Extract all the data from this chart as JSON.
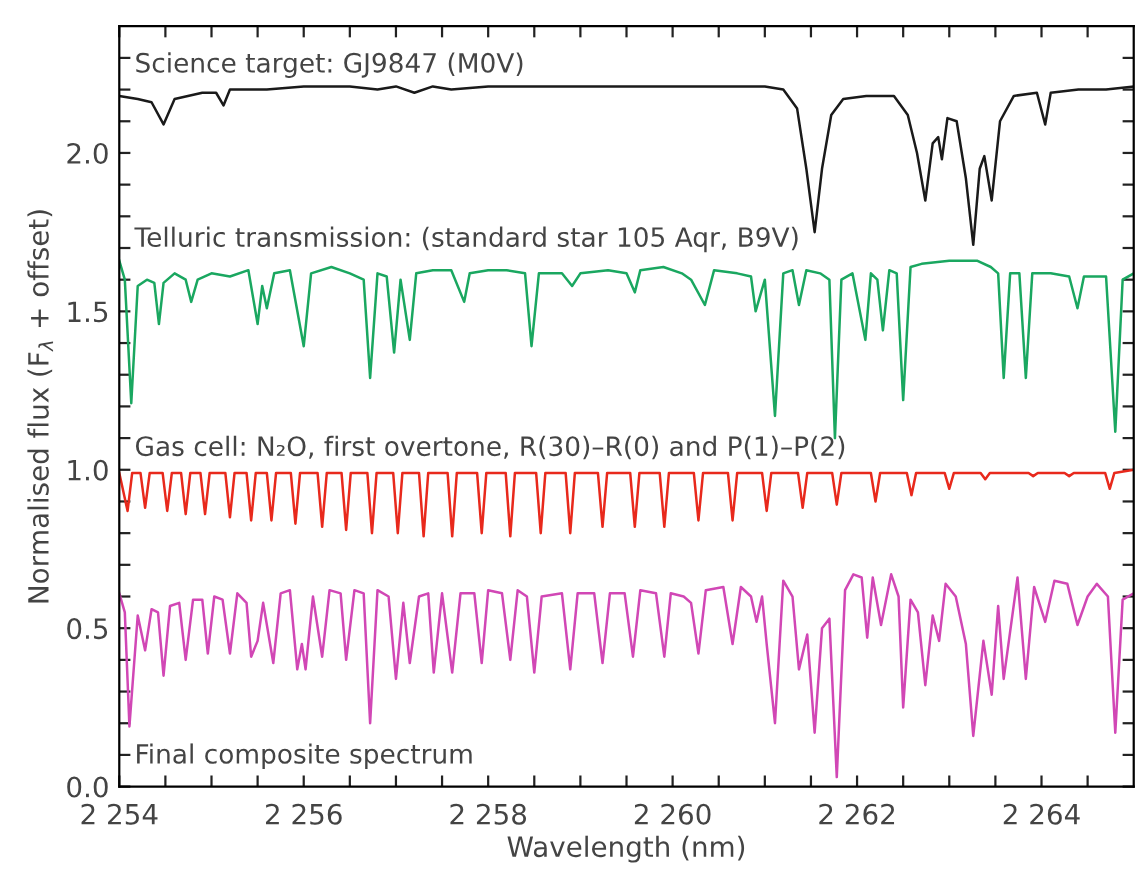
{
  "chart_data": {
    "type": "line",
    "xlabel": "Wavelength (nm)",
    "ylabel": "Normalised flux (F$_{λ}$ + offset)",
    "xlim": [
      2254,
      2265
    ],
    "ylim": [
      0,
      2.4
    ],
    "xticks": [
      {
        "value": 2254,
        "label": "2 254"
      },
      {
        "value": 2254.5,
        "label": null
      },
      {
        "value": 2255,
        "label": null
      },
      {
        "value": 2255.5,
        "label": null
      },
      {
        "value": 2256,
        "label": "2 256"
      },
      {
        "value": 2256.5,
        "label": null
      },
      {
        "value": 2257,
        "label": null
      },
      {
        "value": 2257.5,
        "label": null
      },
      {
        "value": 2258,
        "label": "2 258"
      },
      {
        "value": 2258.5,
        "label": null
      },
      {
        "value": 2259,
        "label": null
      },
      {
        "value": 2259.5,
        "label": null
      },
      {
        "value": 2260,
        "label": "2 260"
      },
      {
        "value": 2260.5,
        "label": null
      },
      {
        "value": 2261,
        "label": null
      },
      {
        "value": 2261.5,
        "label": null
      },
      {
        "value": 2262,
        "label": "2 262"
      },
      {
        "value": 2262.5,
        "label": null
      },
      {
        "value": 2263,
        "label": null
      },
      {
        "value": 2263.5,
        "label": null
      },
      {
        "value": 2264,
        "label": "2 264"
      },
      {
        "value": 2264.5,
        "label": null
      }
    ],
    "yticks": [
      {
        "value": 0,
        "label": "0.0"
      },
      {
        "value": 0.1,
        "label": null
      },
      {
        "value": 0.2,
        "label": null
      },
      {
        "value": 0.3,
        "label": null
      },
      {
        "value": 0.4,
        "label": null
      },
      {
        "value": 0.5,
        "label": "0.5"
      },
      {
        "value": 0.6,
        "label": null
      },
      {
        "value": 0.7,
        "label": null
      },
      {
        "value": 0.8,
        "label": null
      },
      {
        "value": 0.9,
        "label": null
      },
      {
        "value": 1.0,
        "label": "1.0"
      },
      {
        "value": 1.1,
        "label": null
      },
      {
        "value": 1.2,
        "label": null
      },
      {
        "value": 1.3,
        "label": null
      },
      {
        "value": 1.4,
        "label": null
      },
      {
        "value": 1.5,
        "label": "1.5"
      },
      {
        "value": 1.6,
        "label": null
      },
      {
        "value": 1.7,
        "label": null
      },
      {
        "value": 1.8,
        "label": null
      },
      {
        "value": 1.9,
        "label": null
      },
      {
        "value": 2.0,
        "label": "2.0"
      },
      {
        "value": 2.1,
        "label": null
      },
      {
        "value": 2.2,
        "label": null
      },
      {
        "value": 2.3,
        "label": null
      }
    ],
    "annotations": [
      "Science target: GJ9847 (M0V)",
      "Telluric transmission: (standard star 105 Aqr, B9V)",
      "Gas cell: N₂O, first overtone, R(30)–R(0) and P(1)–P(2)",
      "Final composite spectrum"
    ],
    "grid": false,
    "marker": "none",
    "line_style": "solid",
    "series": [
      {
        "color": "#1a1a1a",
        "x": [
          2254.0,
          2254.2,
          2254.35,
          2254.48,
          2254.6,
          2254.9,
          2255.05,
          2255.13,
          2255.2,
          2255.6,
          2256.0,
          2256.5,
          2256.8,
          2257.0,
          2257.2,
          2257.4,
          2257.6,
          2258.0,
          2258.5,
          2259.0,
          2259.5,
          2260.0,
          2260.5,
          2261.0,
          2261.2,
          2261.35,
          2261.45,
          2261.54,
          2261.62,
          2261.72,
          2261.85,
          2262.1,
          2262.4,
          2262.55,
          2262.65,
          2262.74,
          2262.82,
          2262.88,
          2262.92,
          2262.98,
          2263.08,
          2263.18,
          2263.26,
          2263.33,
          2263.38,
          2263.46,
          2263.55,
          2263.7,
          2263.95,
          2264.04,
          2264.1,
          2264.4,
          2264.7,
          2265.0
        ],
        "values": [
          2.18,
          2.17,
          2.16,
          2.09,
          2.17,
          2.19,
          2.19,
          2.15,
          2.2,
          2.2,
          2.21,
          2.21,
          2.2,
          2.21,
          2.19,
          2.21,
          2.2,
          2.21,
          2.21,
          2.21,
          2.21,
          2.21,
          2.21,
          2.21,
          2.2,
          2.14,
          1.95,
          1.75,
          1.95,
          2.12,
          2.17,
          2.18,
          2.18,
          2.12,
          2.0,
          1.85,
          2.03,
          2.05,
          1.98,
          2.11,
          2.1,
          1.92,
          1.71,
          1.95,
          1.99,
          1.85,
          2.1,
          2.18,
          2.19,
          2.09,
          2.19,
          2.2,
          2.2,
          2.21
        ]
      },
      {
        "color": "#1aa760",
        "x": [
          2254.0,
          2254.06,
          2254.13,
          2254.2,
          2254.3,
          2254.38,
          2254.43,
          2254.48,
          2254.6,
          2254.72,
          2254.78,
          2254.85,
          2255.0,
          2255.2,
          2255.4,
          2255.5,
          2255.55,
          2255.6,
          2255.68,
          2255.85,
          2256.0,
          2256.08,
          2256.3,
          2256.5,
          2256.65,
          2256.72,
          2256.8,
          2256.9,
          2256.98,
          2257.05,
          2257.15,
          2257.22,
          2257.4,
          2257.6,
          2257.74,
          2257.8,
          2258.0,
          2258.2,
          2258.4,
          2258.47,
          2258.55,
          2258.8,
          2258.91,
          2259.0,
          2259.3,
          2259.5,
          2259.59,
          2259.65,
          2259.9,
          2260.1,
          2260.2,
          2260.35,
          2260.45,
          2260.7,
          2260.85,
          2260.9,
          2261.0,
          2261.11,
          2261.2,
          2261.3,
          2261.37,
          2261.45,
          2261.6,
          2261.7,
          2261.76,
          2261.83,
          2261.95,
          2262.09,
          2262.15,
          2262.22,
          2262.28,
          2262.35,
          2262.43,
          2262.5,
          2262.58,
          2262.7,
          2263.0,
          2263.3,
          2263.45,
          2263.53,
          2263.59,
          2263.66,
          2263.76,
          2263.83,
          2263.9,
          2264.1,
          2264.3,
          2264.39,
          2264.46,
          2264.7,
          2264.8,
          2264.88,
          2265.0
        ],
        "values": [
          1.66,
          1.6,
          1.21,
          1.58,
          1.6,
          1.59,
          1.46,
          1.59,
          1.62,
          1.6,
          1.53,
          1.6,
          1.62,
          1.61,
          1.63,
          1.46,
          1.58,
          1.51,
          1.62,
          1.63,
          1.39,
          1.62,
          1.64,
          1.62,
          1.6,
          1.29,
          1.62,
          1.61,
          1.37,
          1.6,
          1.41,
          1.62,
          1.63,
          1.63,
          1.53,
          1.62,
          1.63,
          1.63,
          1.62,
          1.39,
          1.62,
          1.62,
          1.58,
          1.62,
          1.63,
          1.62,
          1.56,
          1.63,
          1.64,
          1.62,
          1.6,
          1.52,
          1.63,
          1.62,
          1.61,
          1.5,
          1.6,
          1.17,
          1.62,
          1.63,
          1.52,
          1.63,
          1.62,
          1.6,
          1.1,
          1.6,
          1.62,
          1.41,
          1.62,
          1.6,
          1.44,
          1.63,
          1.62,
          1.22,
          1.64,
          1.65,
          1.66,
          1.66,
          1.64,
          1.62,
          1.29,
          1.62,
          1.62,
          1.29,
          1.62,
          1.62,
          1.61,
          1.51,
          1.61,
          1.61,
          1.12,
          1.6,
          1.62
        ]
      },
      {
        "color": "#e8291c",
        "x": [
          2254.0,
          2254.09,
          2254.14,
          2254.23,
          2254.28,
          2254.33,
          2254.47,
          2254.52,
          2254.57,
          2254.67,
          2254.72,
          2254.77,
          2254.88,
          2254.93,
          2254.98,
          2255.15,
          2255.2,
          2255.25,
          2255.38,
          2255.43,
          2255.48,
          2255.6,
          2255.65,
          2255.7,
          2255.86,
          2255.91,
          2255.96,
          2256.15,
          2256.2,
          2256.25,
          2256.41,
          2256.46,
          2256.51,
          2256.69,
          2256.74,
          2256.79,
          2256.97,
          2257.02,
          2257.07,
          2257.25,
          2257.3,
          2257.35,
          2257.56,
          2257.61,
          2257.66,
          2257.88,
          2257.93,
          2257.98,
          2258.19,
          2258.24,
          2258.29,
          2258.52,
          2258.57,
          2258.62,
          2258.84,
          2258.89,
          2258.94,
          2259.19,
          2259.24,
          2259.29,
          2259.54,
          2259.59,
          2259.64,
          2259.86,
          2259.91,
          2259.96,
          2260.23,
          2260.28,
          2260.33,
          2260.6,
          2260.65,
          2260.7,
          2260.97,
          2261.02,
          2261.07,
          2261.36,
          2261.41,
          2261.46,
          2261.73,
          2261.78,
          2261.83,
          2262.15,
          2262.2,
          2262.25,
          2262.54,
          2262.59,
          2262.64,
          2262.95,
          2263.0,
          2263.05,
          2263.34,
          2263.39,
          2263.44,
          2263.86,
          2263.91,
          2263.96,
          2264.25,
          2264.3,
          2264.35,
          2264.69,
          2264.74,
          2264.79,
          2265.0
        ],
        "values": [
          0.99,
          0.87,
          0.99,
          0.99,
          0.88,
          0.99,
          0.99,
          0.87,
          0.99,
          0.99,
          0.86,
          0.99,
          0.99,
          0.86,
          0.99,
          0.99,
          0.85,
          0.99,
          0.99,
          0.84,
          0.99,
          0.99,
          0.84,
          0.99,
          0.99,
          0.83,
          0.99,
          0.99,
          0.82,
          0.99,
          0.99,
          0.81,
          0.99,
          0.99,
          0.8,
          0.99,
          0.99,
          0.8,
          0.99,
          0.99,
          0.79,
          0.99,
          0.99,
          0.79,
          0.99,
          0.99,
          0.8,
          0.99,
          0.99,
          0.79,
          0.99,
          0.99,
          0.8,
          0.99,
          0.99,
          0.8,
          0.99,
          0.99,
          0.82,
          0.99,
          0.99,
          0.82,
          0.99,
          0.99,
          0.82,
          0.99,
          0.99,
          0.84,
          0.99,
          0.99,
          0.84,
          0.99,
          0.99,
          0.87,
          0.99,
          0.99,
          0.88,
          0.99,
          0.99,
          0.89,
          0.99,
          0.99,
          0.9,
          0.99,
          0.99,
          0.92,
          0.99,
          0.99,
          0.94,
          0.99,
          0.99,
          0.97,
          0.99,
          0.99,
          0.98,
          0.99,
          0.99,
          0.98,
          0.99,
          0.99,
          0.94,
          0.99,
          1.0
        ]
      },
      {
        "color": "#d147b5",
        "x": [
          2254.0,
          2254.06,
          2254.11,
          2254.2,
          2254.28,
          2254.35,
          2254.42,
          2254.48,
          2254.55,
          2254.65,
          2254.72,
          2254.8,
          2254.9,
          2254.96,
          2255.03,
          2255.12,
          2255.2,
          2255.28,
          2255.38,
          2255.43,
          2255.5,
          2255.56,
          2255.67,
          2255.75,
          2255.85,
          2255.93,
          2255.98,
          2256.02,
          2256.1,
          2256.2,
          2256.28,
          2256.4,
          2256.46,
          2256.55,
          2256.65,
          2256.72,
          2256.8,
          2256.92,
          2257.0,
          2257.08,
          2257.15,
          2257.25,
          2257.35,
          2257.41,
          2257.5,
          2257.61,
          2257.7,
          2257.85,
          2257.93,
          2258.0,
          2258.15,
          2258.24,
          2258.32,
          2258.42,
          2258.5,
          2258.58,
          2258.8,
          2258.89,
          2258.97,
          2259.15,
          2259.24,
          2259.32,
          2259.48,
          2259.57,
          2259.65,
          2259.82,
          2259.91,
          2259.98,
          2260.12,
          2260.2,
          2260.28,
          2260.36,
          2260.55,
          2260.65,
          2260.74,
          2260.85,
          2260.91,
          2260.97,
          2261.02,
          2261.11,
          2261.2,
          2261.3,
          2261.37,
          2261.46,
          2261.54,
          2261.62,
          2261.7,
          2261.78,
          2261.87,
          2261.96,
          2262.05,
          2262.11,
          2262.17,
          2262.26,
          2262.37,
          2262.45,
          2262.5,
          2262.58,
          2262.66,
          2262.74,
          2262.82,
          2262.89,
          2262.96,
          2263.07,
          2263.18,
          2263.26,
          2263.37,
          2263.46,
          2263.53,
          2263.59,
          2263.74,
          2263.83,
          2263.92,
          2264.04,
          2264.14,
          2264.28,
          2264.39,
          2264.5,
          2264.6,
          2264.72,
          2264.8,
          2264.88,
          2265.0
        ],
        "values": [
          0.61,
          0.55,
          0.19,
          0.54,
          0.43,
          0.56,
          0.55,
          0.35,
          0.57,
          0.58,
          0.4,
          0.59,
          0.59,
          0.42,
          0.6,
          0.59,
          0.42,
          0.61,
          0.58,
          0.41,
          0.46,
          0.58,
          0.39,
          0.61,
          0.62,
          0.37,
          0.45,
          0.37,
          0.6,
          0.41,
          0.62,
          0.61,
          0.4,
          0.62,
          0.61,
          0.2,
          0.62,
          0.6,
          0.34,
          0.58,
          0.39,
          0.6,
          0.61,
          0.36,
          0.61,
          0.36,
          0.61,
          0.61,
          0.39,
          0.62,
          0.61,
          0.4,
          0.62,
          0.6,
          0.36,
          0.6,
          0.61,
          0.37,
          0.61,
          0.61,
          0.39,
          0.61,
          0.61,
          0.41,
          0.62,
          0.61,
          0.41,
          0.61,
          0.6,
          0.58,
          0.42,
          0.62,
          0.63,
          0.45,
          0.63,
          0.6,
          0.52,
          0.6,
          0.45,
          0.2,
          0.65,
          0.6,
          0.37,
          0.48,
          0.17,
          0.5,
          0.53,
          0.03,
          0.62,
          0.67,
          0.66,
          0.47,
          0.66,
          0.51,
          0.67,
          0.6,
          0.25,
          0.59,
          0.55,
          0.32,
          0.54,
          0.46,
          0.64,
          0.6,
          0.45,
          0.16,
          0.46,
          0.29,
          0.57,
          0.34,
          0.66,
          0.34,
          0.63,
          0.52,
          0.65,
          0.64,
          0.51,
          0.6,
          0.64,
          0.6,
          0.17,
          0.59,
          0.61
        ]
      }
    ]
  }
}
